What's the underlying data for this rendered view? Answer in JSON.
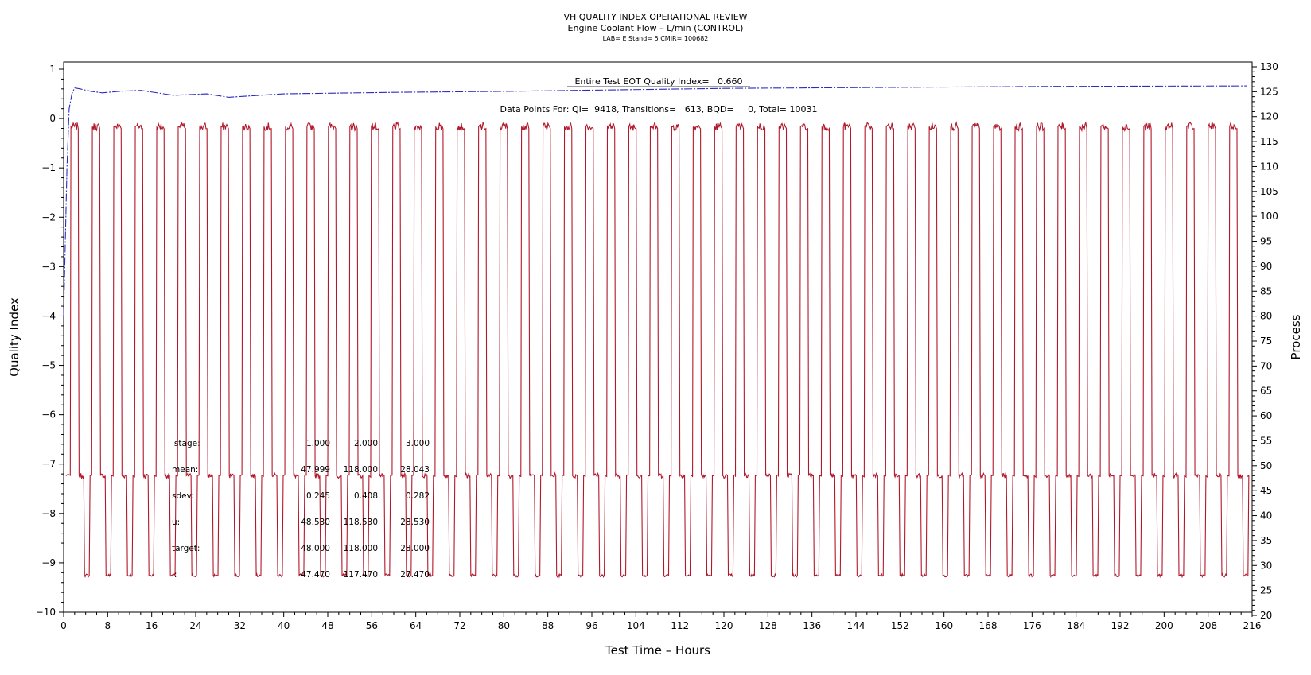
{
  "chart_data": {
    "type": "line",
    "title": "VH QUALITY INDEX OPERATIONAL REVIEW",
    "subtitle": "Engine Coolant Flow – L/min (CONTROL)",
    "meta_line": "LAB= E Stand= 5 CMIR= 100682",
    "xlabel": "Test Time – Hours",
    "ylabel_left": "Quality Index",
    "ylabel_right": "Process",
    "xlim": [
      0,
      216
    ],
    "ylim_left": [
      -10,
      1
    ],
    "ylim_right": [
      20,
      130
    ],
    "x_ticks": [
      "0",
      "8",
      "16",
      "24",
      "32",
      "40",
      "48",
      "56",
      "64",
      "72",
      "80",
      "88",
      "96",
      "104",
      "112",
      "120",
      "128",
      "136",
      "144",
      "152",
      "160",
      "168",
      "176",
      "184",
      "192",
      "200",
      "208",
      "216"
    ],
    "y_ticks_left": [
      "1",
      "0",
      "−1",
      "−2",
      "−3",
      "−4",
      "−5",
      "−6",
      "−7",
      "−8",
      "−9",
      "−10"
    ],
    "y_ticks_right": [
      "130",
      "125",
      "120",
      "115",
      "110",
      "105",
      "100",
      "95",
      "90",
      "85",
      "80",
      "75",
      "70",
      "65",
      "60",
      "55",
      "50",
      "45",
      "40",
      "35",
      "30",
      "25",
      "20"
    ],
    "annotations": {
      "qi_line": "Entire Test EOT Quality Index=   0.660",
      "counts_line": "Data Points For: QI=  9418, Transitions=   613, BQD=     0, Total= 10031"
    },
    "stats_table": {
      "rows": [
        {
          "label": "lstage:",
          "values": [
            "1.000",
            "2.000",
            "3.000"
          ]
        },
        {
          "label": "mean:",
          "values": [
            "47.999",
            "118.000",
            "28.043"
          ]
        },
        {
          "label": "sdev:",
          "values": [
            "0.245",
            "0.408",
            "0.282"
          ]
        },
        {
          "label": "u:",
          "values": [
            "48.530",
            "118.530",
            "28.530"
          ]
        },
        {
          "label": "target:",
          "values": [
            "48.000",
            "118.000",
            "28.000"
          ]
        },
        {
          "label": "l:",
          "values": [
            "47.470",
            "117.470",
            "27.470"
          ]
        }
      ]
    },
    "series": [
      {
        "axis": "left",
        "color": "#2b2bbf",
        "style": "dash-dot",
        "x": [
          0,
          0.3,
          0.6,
          1.0,
          1.5,
          2.0,
          3.0,
          5.0,
          7.0,
          10.0,
          14.0,
          20.0,
          26.0,
          30.0,
          40.0,
          60.0,
          80.0,
          100.0,
          120.0,
          150.0,
          180.0,
          215.0
        ],
        "values": [
          -4.0,
          -2.5,
          -1.0,
          0.2,
          0.5,
          0.62,
          0.6,
          0.55,
          0.52,
          0.55,
          0.57,
          0.47,
          0.5,
          0.43,
          0.5,
          0.53,
          0.55,
          0.58,
          0.61,
          0.63,
          0.65,
          0.66
        ]
      },
      {
        "axis": "right",
        "color": "#b2182b",
        "style": "solid",
        "cycle_hours": 3.9,
        "cycle_start": 1.2,
        "cycles": 55,
        "x_end": 215,
        "stage_levels": [
          48,
          118,
          28
        ],
        "stage_targets": [
          48.0,
          118.0,
          28.0
        ],
        "stage_means": [
          47.999,
          118.0,
          28.043
        ]
      }
    ]
  }
}
